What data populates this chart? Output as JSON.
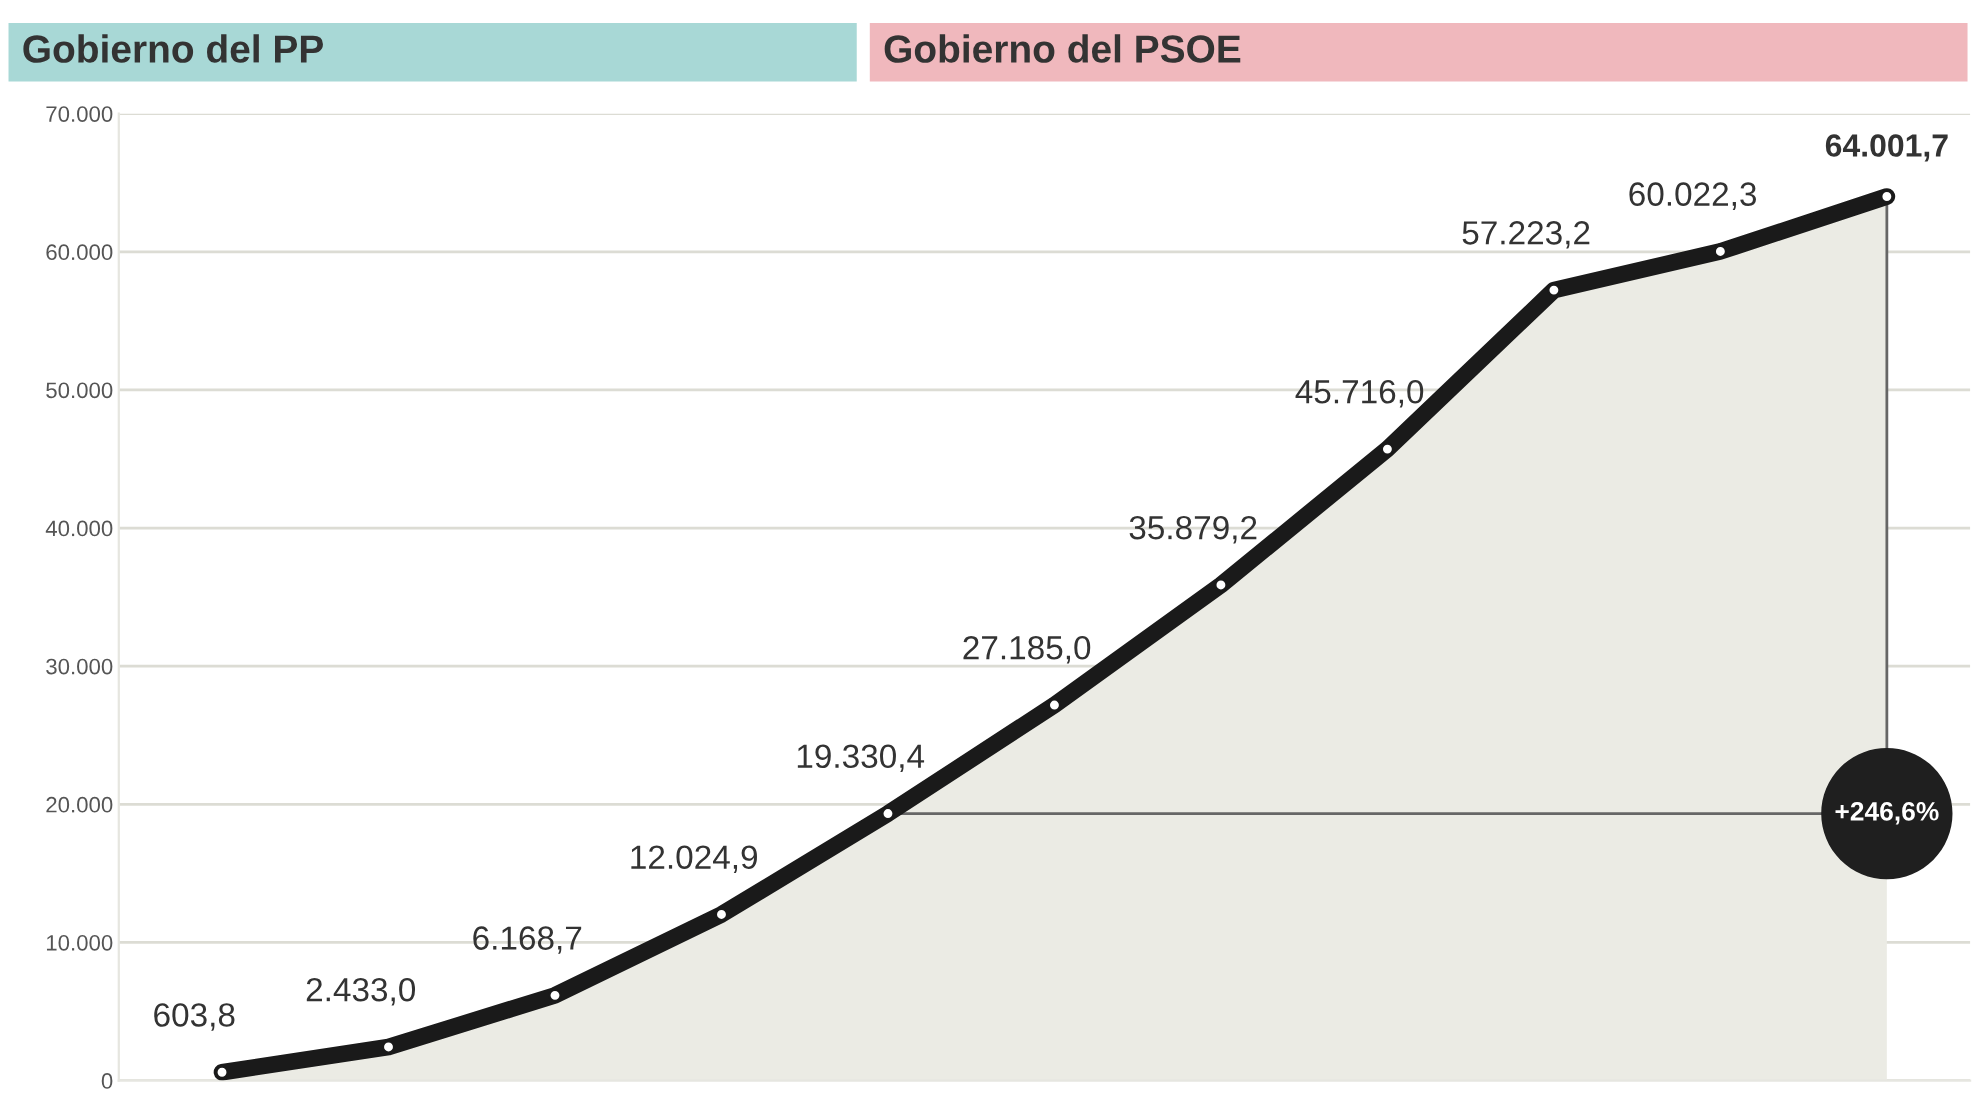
{
  "chart_data": {
    "type": "area",
    "categories": [
      null,
      null,
      null,
      null,
      null,
      null,
      null,
      null,
      null,
      null,
      null
    ],
    "series": [
      {
        "color": "#1a1a1a",
        "values": [
          603.8,
          2433.0,
          6168.7,
          12024.9,
          19330.4,
          27185.0,
          35879.2,
          45716.0,
          57223.2,
          60022.3,
          64001.7
        ],
        "value_labels": [
          "603,8",
          "2.433,0",
          "6.168,7",
          "12.024,9",
          "19.330,4",
          "27.185,0",
          "35.879,2",
          "45.716,0",
          "57.223,2",
          "60.022,3",
          "64.001,7"
        ]
      }
    ],
    "ylim": [
      0,
      70000
    ],
    "yticks": [
      {
        "value": 0,
        "label": "0"
      },
      {
        "value": 10000,
        "label": "10.000"
      },
      {
        "value": 20000,
        "label": "20.000"
      },
      {
        "value": 30000,
        "label": "30.000"
      },
      {
        "value": 40000,
        "label": "40.000"
      },
      {
        "value": 50000,
        "label": "50.000"
      },
      {
        "value": 60000,
        "label": "60.000"
      },
      {
        "value": 70000,
        "label": "70.000"
      }
    ],
    "tick_labels": "y",
    "grid": true,
    "marker": "circle",
    "annotations": [
      "Gobierno del PP",
      "Gobierno del PSOE",
      {
        "text": "+246,6%",
        "y": 19330.4
      }
    ]
  }
}
